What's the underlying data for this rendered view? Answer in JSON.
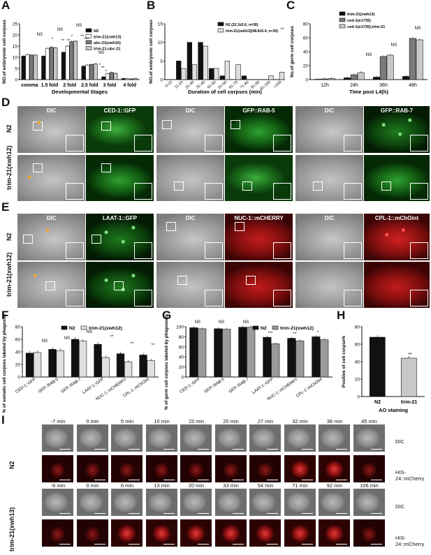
{
  "panel_labels": {
    "A": "A",
    "B": "B",
    "C": "C",
    "D": "D",
    "E": "E",
    "F": "F",
    "G": "G",
    "H": "H",
    "I": "I"
  },
  "strains": {
    "n2": "N2",
    "trim21_xwh13": "trim-21(xwh13)",
    "trim21_xwh12": "trim-21(xwh12)",
    "trim21": "trim-21"
  },
  "significance": {
    "ns": "NS",
    "one": "*",
    "two": "**",
    "three": "***"
  },
  "panel_D": {
    "captions": [
      "DIC",
      "CED-1::GFP",
      "DIC",
      "GFP::RAB-5",
      "DIC",
      "GFP::RAB-7"
    ]
  },
  "panel_E": {
    "captions": [
      "DIC",
      "LAAT-1::GFP",
      "DIC",
      "NUC-1::mCHERRY",
      "DIC",
      "CPL-1::mChOint"
    ]
  },
  "panel_I": {
    "n2_times": [
      "-7 min",
      "0 min",
      "5 min",
      "10 min",
      "15 min",
      "20 min",
      "27 min",
      "32 min",
      "38 min",
      "45 min"
    ],
    "mut_times": [
      "-6 min",
      "0 min",
      "6 min",
      "13 min",
      "20 min",
      "33 min",
      "54 min",
      "71 min",
      "92 min",
      "106 min"
    ],
    "channels": [
      "DIC",
      "HIS-24::mCherry"
    ]
  },
  "colors": {
    "black": "#111111",
    "white": "#ffffff",
    "grey": "#c8c8c8",
    "mid": "#7a7a7a",
    "light": "#e0e0e0",
    "accent_arrow": "#f5a623"
  },
  "chart_data": [
    {
      "panel": "A",
      "type": "bar",
      "ylabel": "NO.of embryonic cell corpses",
      "xlabel": "Developmental Stages",
      "ylim": [
        0,
        25
      ],
      "yticks": [
        "0",
        "5",
        "10",
        "15",
        "20",
        "25"
      ],
      "categories": [
        "comma",
        "1.5 fold",
        "2 fold",
        "2.5 fold",
        "3 fold",
        "4 fold"
      ],
      "series": [
        {
          "name": "N2",
          "color": "#111111",
          "values": [
            10.5,
            10.5,
            12.2,
            6,
            1.2,
            0.5
          ]
        },
        {
          "name": "trim-21(xwh13)",
          "color": "#ffffff",
          "values": [
            11.2,
            14,
            15,
            6.5,
            2.6,
            0.4
          ]
        },
        {
          "name": "ubc-21(xwh16)",
          "color": "#7a7a7a",
          "values": [
            11,
            14.5,
            17,
            6.8,
            3.2,
            0.3
          ]
        },
        {
          "name": "trim-21;ubc-21",
          "color": "#c8c8c8",
          "values": [
            11,
            14.2,
            17.2,
            7,
            2.8,
            0.5
          ]
        }
      ],
      "annotations": [
        "NS",
        "NS",
        "NS",
        "NS",
        "*",
        "*",
        "*",
        "**",
        "**",
        "**",
        "***",
        "**",
        "*"
      ]
    },
    {
      "panel": "B",
      "type": "bar",
      "ylabel": "NO.of embryonic cell corpses",
      "xlabel": "Duration of cell corpses (min)",
      "ylim": [
        0,
        15
      ],
      "yticks": [
        "0",
        "5",
        "10",
        "15"
      ],
      "categories": [
        "0-10",
        "11-20",
        "21-30",
        "31-40",
        "41-50",
        "51-60",
        "61-70",
        "71-80",
        "81-90",
        "91-100",
        ">100"
      ],
      "series": [
        {
          "name": "N2 (32.3±2.6, n=30)",
          "color": "#111111",
          "values": [
            0,
            5,
            10,
            10,
            3,
            1,
            0,
            1,
            0,
            0,
            0
          ]
        },
        {
          "name": "trim-21(xwh13)(48.6±5.4, n=30)",
          "color": "#e0e0e0",
          "values": [
            0,
            3,
            4,
            9,
            3,
            5,
            4,
            0,
            0,
            1,
            2
          ]
        }
      ],
      "annotations": [
        "**"
      ]
    },
    {
      "panel": "C",
      "type": "bar",
      "ylabel": "No.of germ cell corpses",
      "xlabel": "Time post L4(h)",
      "ylim": [
        0,
        80
      ],
      "yticks": [
        "0",
        "20",
        "40",
        "60",
        "80"
      ],
      "categories": [
        "12h",
        "24h",
        "36h",
        "48h"
      ],
      "series": [
        {
          "name": "trim-21(xwh13)",
          "color": "#111111",
          "values": [
            0.5,
            2.5,
            3.5,
            4.5
          ]
        },
        {
          "name": "ced-1(e1735)",
          "color": "#7a7a7a",
          "values": [
            1,
            7,
            33,
            59
          ]
        },
        {
          "name": "ced-1(e1735);trim-21",
          "color": "#c8c8c8",
          "values": [
            1.5,
            10,
            35,
            57
          ]
        }
      ],
      "annotations": [
        "NS",
        "NS",
        "NS"
      ]
    },
    {
      "panel": "F",
      "type": "bar",
      "ylabel": "% of somatic cell corpses labeled by phagosomal markers",
      "ylim": [
        0,
        80
      ],
      "yticks": [
        "0",
        "20",
        "40",
        "60",
        "80"
      ],
      "categories": [
        "CED-1::GFP",
        "GFP::RAB-5",
        "GFP::RAB-7",
        "LAAT-1::GFP",
        "NUC-1::mCHERRY",
        "CPL-1::mChOint"
      ],
      "series": [
        {
          "name": "N2",
          "color": "#111111",
          "values": [
            38,
            44,
            60,
            52,
            37,
            35
          ]
        },
        {
          "name": "trim-21(xwh12)",
          "color": "#e0e0e0",
          "values": [
            39,
            42,
            57,
            31,
            24,
            26
          ]
        }
      ],
      "annotations": [
        "NS",
        "NS",
        "NS",
        "**",
        "**",
        "**"
      ]
    },
    {
      "panel": "G",
      "type": "bar",
      "ylabel": "% of germ cell corpses labeled by phagosomal markers",
      "ylim": [
        0,
        100
      ],
      "yticks": [
        "0",
        "20",
        "40",
        "60",
        "80",
        "100"
      ],
      "categories": [
        "CED-1::GFP",
        "GFP::RAB-5",
        "GFP::RAB-7",
        "LAAT-1::GFP",
        "NUC-1::mCHERRY",
        "CPL-1::mChOint"
      ],
      "series": [
        {
          "name": "N2",
          "color": "#111111",
          "values": [
            98,
            96,
            99,
            79,
            77,
            80
          ]
        },
        {
          "name": "trim-21(xwh12)",
          "color": "#9a9a9a",
          "values": [
            96,
            95,
            99,
            66,
            72,
            74
          ]
        }
      ],
      "annotations": [
        "NS",
        "NS",
        "NS",
        "***",
        "**",
        "*"
      ]
    },
    {
      "panel": "H",
      "type": "bar",
      "ylabel": "Positive of cell corpse%",
      "xlabel": "AO staining",
      "ylim": [
        0,
        80
      ],
      "yticks": [
        "0",
        "20",
        "40",
        "60",
        "80"
      ],
      "categories": [
        "N2",
        "trim-21"
      ],
      "series": [
        {
          "name": "",
          "color": "#111111",
          "values": [
            68,
            44
          ]
        }
      ],
      "bar_colors": [
        "#111111",
        "#c8c8c8"
      ],
      "annotations": [
        "**"
      ]
    }
  ]
}
